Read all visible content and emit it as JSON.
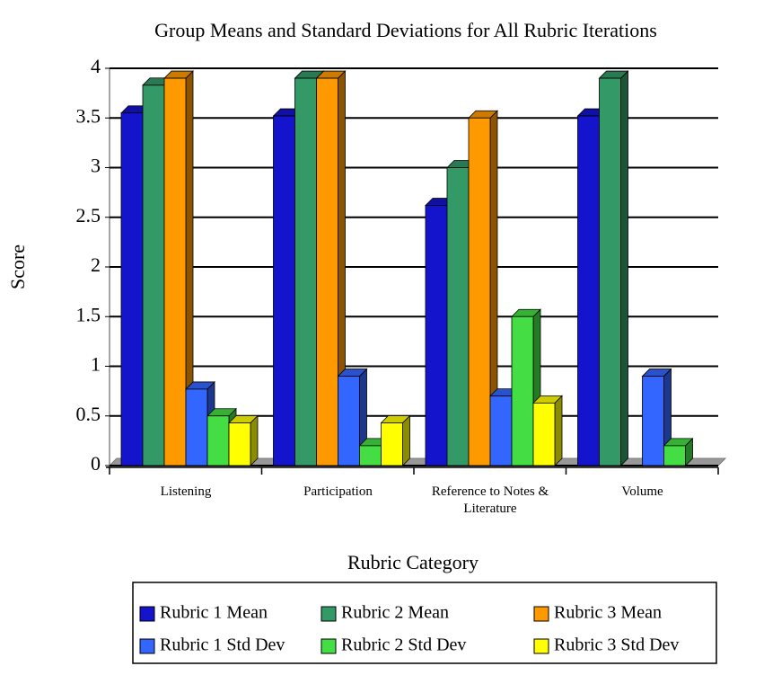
{
  "chart_data": {
    "type": "bar3d",
    "title": "Group Means and Standard Deviations for All Rubric Iterations",
    "y_label": "Score",
    "x_label": "Rubric Category",
    "categories": [
      "Listening",
      "Participation",
      "Reference to Notes & Literature",
      "Volume"
    ],
    "series": [
      {
        "name": "Rubric 1 Mean",
        "color": "#1414cc",
        "values": [
          3.55,
          3.52,
          2.62,
          3.52
        ]
      },
      {
        "name": "Rubric 2 Mean",
        "color": "#339966",
        "values": [
          3.83,
          3.9,
          3.0,
          3.9
        ]
      },
      {
        "name": "Rubric 3 Mean",
        "color": "#ff9900",
        "values": [
          3.9,
          3.9,
          3.5,
          null
        ]
      },
      {
        "name": "Rubric 1 Std Dev",
        "color": "#3366ff",
        "values": [
          0.77,
          0.9,
          0.7,
          0.9
        ]
      },
      {
        "name": "Rubric 2 Std Dev",
        "color": "#44dd44",
        "values": [
          0.5,
          0.2,
          1.5,
          0.2
        ]
      },
      {
        "name": "Rubric 3 Std Dev",
        "color": "#ffff00",
        "values": [
          0.43,
          0.43,
          0.63,
          null
        ]
      }
    ],
    "ylim": [
      0,
      4
    ],
    "yticks": [
      0,
      0.5,
      1,
      1.5,
      2,
      2.5,
      3,
      3.5,
      4
    ],
    "grid": true
  }
}
